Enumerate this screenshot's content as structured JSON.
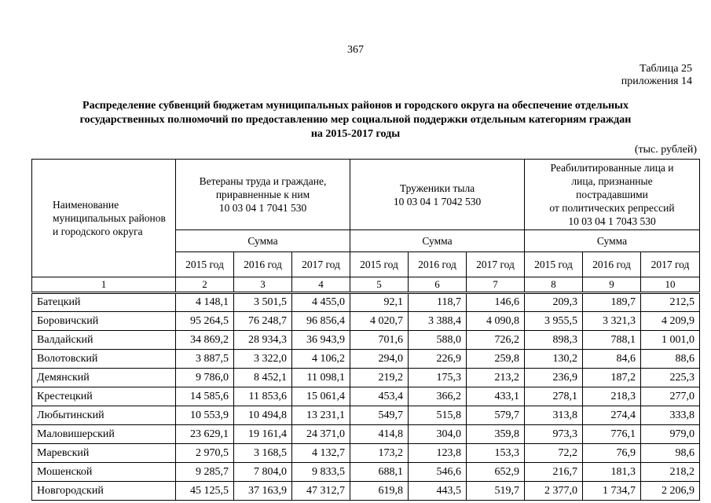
{
  "page": {
    "number": "367",
    "table_label": "Таблица 25",
    "appendix_label": "приложения 14",
    "title": "Распределение субвенций бюджетам муниципальных районов и городского округа на обеспечение отдельных\nгосударственных полномочий по предоставлению мер социальной поддержки отдельным категориям граждан\nна 2015-2017 годы",
    "units": "(тыс. рублей)"
  },
  "table": {
    "name_header": "Наименование\nмуниципальных районов\nи городского округа",
    "groups": [
      {
        "title": "Ветераны труда и граждане, приравненные к ним\n10 03 04 1 7041 530",
        "sum_label": "Сумма",
        "years": [
          "2015 год",
          "2016 год",
          "2017 год"
        ]
      },
      {
        "title": "Труженики тыла\n10 03 04 1 7042 530",
        "sum_label": "Сумма",
        "years": [
          "2015 год",
          "2016 год",
          "2017 год"
        ]
      },
      {
        "title": "Реабилитированные лица и\nлица, признанные\nпострадавшими\nот политических репрессий\n10 03 04 1 7043 530",
        "sum_label": "Сумма",
        "years": [
          "2015 год",
          "2016 год",
          "2017 год"
        ]
      }
    ],
    "column_numbers": [
      "1",
      "2",
      "3",
      "4",
      "5",
      "6",
      "7",
      "8",
      "9",
      "10"
    ],
    "rows": [
      {
        "name": "Батецкий",
        "values": [
          "4 148,1",
          "3 501,5",
          "4 455,0",
          "92,1",
          "118,7",
          "146,6",
          "209,3",
          "189,7",
          "212,5"
        ]
      },
      {
        "name": "Боровичский",
        "values": [
          "95 264,5",
          "76 248,7",
          "96 856,4",
          "4 020,7",
          "3 388,4",
          "4 090,8",
          "3 955,5",
          "3 321,3",
          "4 209,9"
        ]
      },
      {
        "name": "Валдайский",
        "values": [
          "34 869,2",
          "28 934,3",
          "36 943,9",
          "701,6",
          "588,0",
          "726,2",
          "898,3",
          "788,1",
          "1 001,0"
        ]
      },
      {
        "name": "Волотовский",
        "values": [
          "3 887,5",
          "3 322,0",
          "4 106,2",
          "294,0",
          "226,9",
          "259,8",
          "130,2",
          "84,6",
          "88,6"
        ]
      },
      {
        "name": "Демянский",
        "values": [
          "9 786,0",
          "8 452,1",
          "11 098,1",
          "219,2",
          "175,3",
          "213,2",
          "236,9",
          "187,2",
          "225,3"
        ]
      },
      {
        "name": "Крестецкий",
        "values": [
          "14 585,6",
          "11 853,6",
          "15 061,4",
          "453,4",
          "366,2",
          "433,1",
          "278,1",
          "218,3",
          "277,0"
        ]
      },
      {
        "name": "Любытинский",
        "values": [
          "10 553,9",
          "10 494,8",
          "13 231,1",
          "549,7",
          "515,8",
          "579,7",
          "313,8",
          "274,4",
          "333,8"
        ]
      },
      {
        "name": "Маловишерский",
        "values": [
          "23 629,1",
          "19 161,4",
          "24 371,0",
          "414,8",
          "304,0",
          "359,8",
          "973,3",
          "776,1",
          "979,0"
        ]
      },
      {
        "name": "Маревский",
        "values": [
          "2 970,5",
          "3 168,5",
          "4 132,7",
          "173,2",
          "123,8",
          "153,3",
          "72,2",
          "76,9",
          "98,6"
        ]
      },
      {
        "name": "Мошенской",
        "values": [
          "9 285,7",
          "7 804,0",
          "9 833,5",
          "688,1",
          "546,6",
          "652,9",
          "216,7",
          "181,3",
          "218,2"
        ]
      },
      {
        "name": "Новгородский",
        "values": [
          "45 125,5",
          "37 163,9",
          "47 312,7",
          "619,8",
          "443,5",
          "519,7",
          "2 377,0",
          "1 734,7",
          "2 206,9"
        ]
      }
    ]
  }
}
